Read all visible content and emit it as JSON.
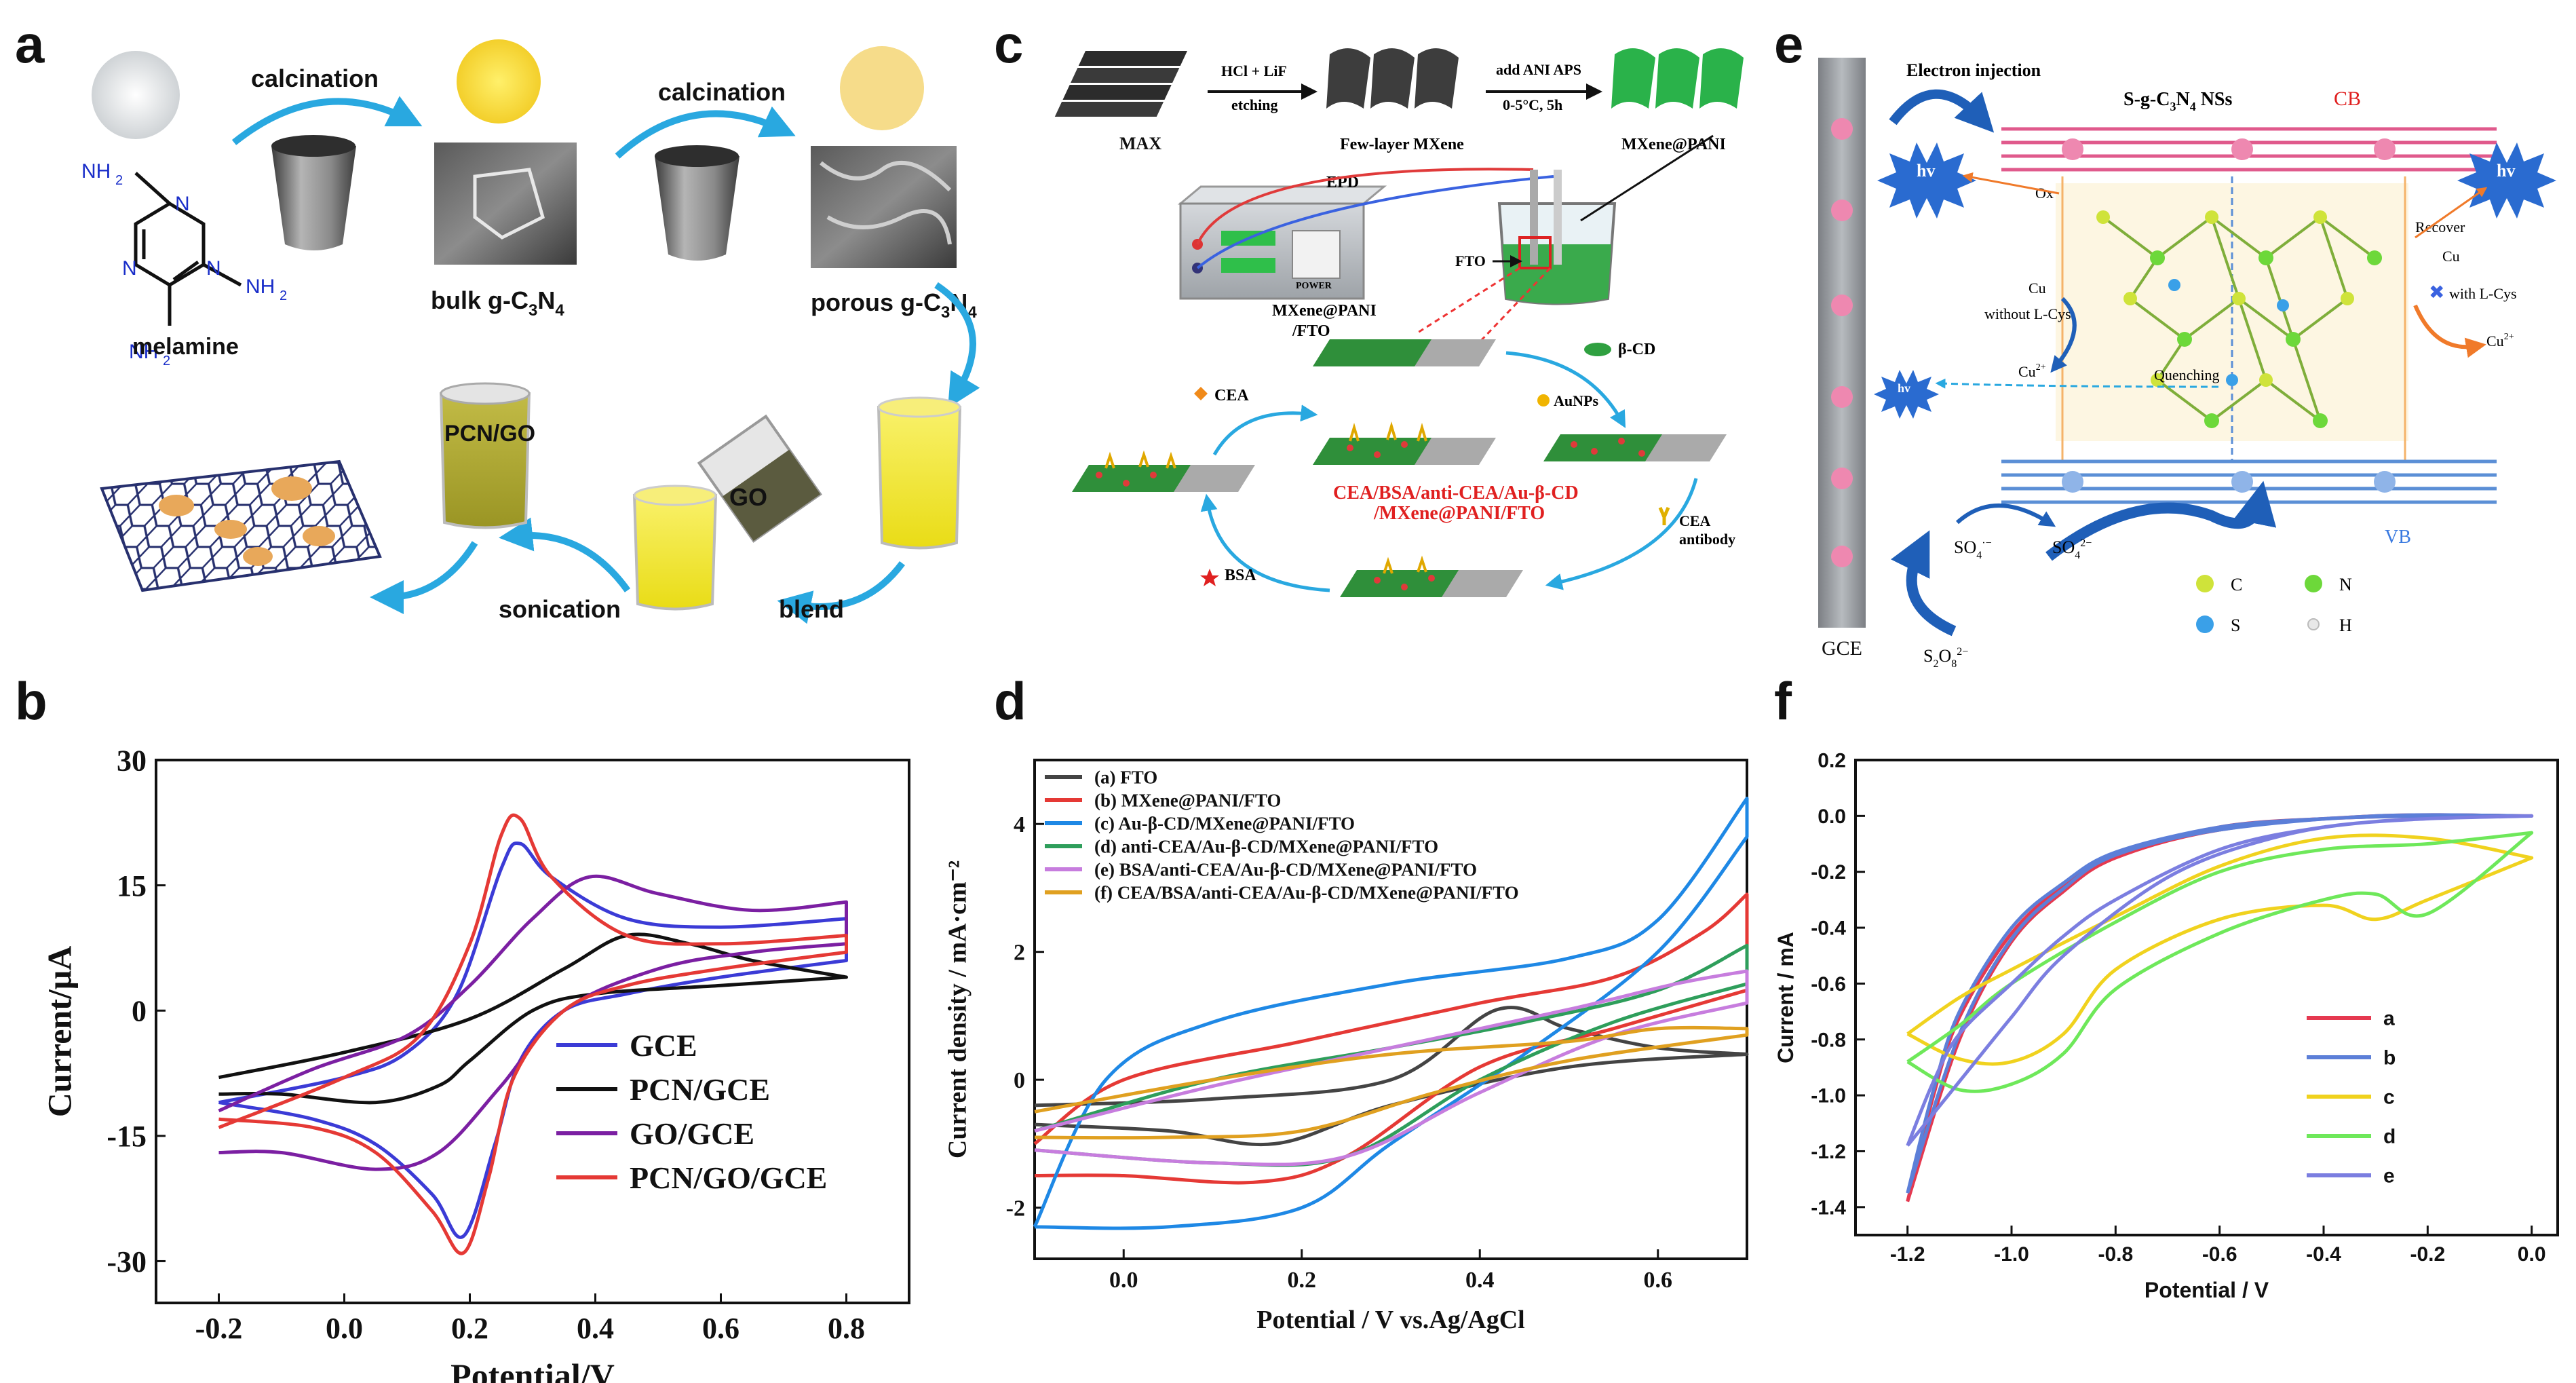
{
  "panel_labels": {
    "a": "a",
    "b": "b",
    "c": "c",
    "d": "d",
    "e": "e",
    "f": "f"
  },
  "panel_a": {
    "melamine": "melamine",
    "nh2": "NH",
    "nh2_sub": "2",
    "n": "N",
    "calcination1": "calcination",
    "calcination2": "calcination",
    "bulk": "bulk g-C",
    "bulk_sub1": "3",
    "bulk_n": "N",
    "bulk_sub2": "4",
    "porous": "porous g-C",
    "porous_sub1": "3",
    "porous_n": "N",
    "porous_sub2": "4",
    "pcn_go": "PCN/GO",
    "go": "GO",
    "sonication": "sonication",
    "blend": "blend"
  },
  "panel_c": {
    "max": "MAX",
    "etch1": "HCl + LiF",
    "etch2": "etching",
    "few": "Few-layer MXene",
    "ani1": "add ANI APS",
    "ani2": "0-5°C, 5h",
    "mxpani": "MXene@PANI",
    "epd": "EPD",
    "power": "POWER",
    "fto": "FTO",
    "mxfto1": "MXene@PANI",
    "mxfto2": "/FTO",
    "bcd": "β-CD",
    "aunps": "AuNPs",
    "cea": "CEA",
    "cea_ab1": "CEA",
    "cea_ab2": "antibody",
    "bsa": "BSA",
    "red1": "CEA/BSA/anti-CEA/Au-β-CD",
    "red2": "/MXene@PANI/FTO"
  },
  "panel_e": {
    "inj": "Electron injection",
    "sg": "S-g-C",
    "sg_sub1": "3",
    "sg_n": "N",
    "sg_sub2": "4",
    "sg_tail": " NSs",
    "cb": "CB",
    "vb": "VB",
    "ec": "e",
    "hv": "hv",
    "ox": "Ox",
    "cu": "Cu",
    "without": "without L-Cys",
    "cu2": "Cu",
    "cu2_sup": "2+",
    "recover": "Recover",
    "withcys": "with L-Cys",
    "quench": "Quenching",
    "hplus": "h",
    "gce": "GCE",
    "so4r": "SO",
    "so4r_sub": "4",
    "so4r_sup": "·−",
    "so42": "SO",
    "so42_sub": "4",
    "so42_sup": "2−",
    "s2o8": "S",
    "s2o8_sub1": "2",
    "s2o8_o": "O",
    "s2o8_sub2": "8",
    "s2o8_sup": "2−",
    "leg_c": "C",
    "leg_n": "N",
    "leg_s": "S",
    "leg_h": "H",
    "colors": {
      "cb_line": "#e05a8c",
      "vb_line": "#5b8fd6",
      "c_atom": "#cfe33a",
      "n_atom": "#6dd83a",
      "s_atom": "#3aa0e8",
      "h_atom": "#e8e8e8"
    }
  },
  "chart_data": [
    {
      "panel": "b",
      "type": "line",
      "xlabel": "Potential/V",
      "ylabel": "Current/μA",
      "xlim": [
        -0.3,
        0.9
      ],
      "ylim": [
        -35,
        30
      ],
      "xticks": [
        -0.2,
        0.0,
        0.2,
        0.4,
        0.6,
        0.8
      ],
      "xtick_labels": [
        "-0.2",
        "0.0",
        "0.2",
        "0.4",
        "0.6",
        "0.8"
      ],
      "yticks": [
        -30,
        -15,
        0,
        15,
        30
      ],
      "ytick_labels": [
        "-30",
        "-15",
        "0",
        "15",
        "30"
      ],
      "legend_position": "bottom-right",
      "series": [
        {
          "name": "GCE",
          "color": "#3b3bd6",
          "fwd_x": [
            -0.2,
            0.0,
            0.1,
            0.18,
            0.25,
            0.28,
            0.33,
            0.45,
            0.6,
            0.8
          ],
          "fwd_y": [
            -11,
            -8,
            -5,
            2,
            17,
            20,
            16,
            11,
            10,
            11
          ],
          "rev_x": [
            0.8,
            0.6,
            0.45,
            0.35,
            0.28,
            0.24,
            0.19,
            0.14,
            0.05,
            -0.05,
            -0.2
          ],
          "rev_y": [
            6,
            4,
            2,
            0,
            -6,
            -16,
            -27,
            -22,
            -16,
            -13,
            -11
          ]
        },
        {
          "name": "PCN/GCE",
          "color": "#111111",
          "fwd_x": [
            -0.2,
            0.0,
            0.2,
            0.35,
            0.45,
            0.55,
            0.65,
            0.8
          ],
          "fwd_y": [
            -8,
            -5,
            -1,
            5,
            9,
            8,
            6,
            4
          ],
          "rev_x": [
            0.8,
            0.6,
            0.4,
            0.3,
            0.2,
            0.15,
            0.05,
            -0.1,
            -0.2
          ],
          "rev_y": [
            4,
            3,
            2,
            0,
            -6,
            -9,
            -11,
            -10,
            -10
          ]
        },
        {
          "name": "GO/GCE",
          "color": "#7b1fa2",
          "fwd_x": [
            -0.2,
            -0.05,
            0.1,
            0.2,
            0.3,
            0.39,
            0.5,
            0.65,
            0.8
          ],
          "fwd_y": [
            -12,
            -7,
            -3,
            3,
            11,
            16,
            14,
            12,
            13
          ],
          "rev_x": [
            0.8,
            0.65,
            0.5,
            0.35,
            0.25,
            0.15,
            0.05,
            -0.1,
            -0.2
          ],
          "rev_y": [
            8,
            7,
            5,
            0,
            -9,
            -17,
            -19,
            -17,
            -17
          ]
        },
        {
          "name": "PCN/GO/GCE",
          "color": "#e53935",
          "fwd_x": [
            -0.2,
            0.0,
            0.12,
            0.2,
            0.25,
            0.28,
            0.33,
            0.45,
            0.6,
            0.8
          ],
          "fwd_y": [
            -14,
            -8,
            -3,
            8,
            21,
            23,
            16,
            9,
            8,
            9
          ],
          "rev_x": [
            0.8,
            0.6,
            0.45,
            0.35,
            0.27,
            0.23,
            0.19,
            0.14,
            0.05,
            -0.05,
            -0.2
          ],
          "rev_y": [
            7,
            5,
            3,
            0,
            -8,
            -20,
            -29,
            -24,
            -17,
            -14,
            -13
          ]
        }
      ]
    },
    {
      "panel": "d",
      "type": "line",
      "xlabel": "Potential / V vs.Ag/AgCl",
      "ylabel": "Current density / mA·cm⁻²",
      "xlim": [
        -0.1,
        0.7
      ],
      "ylim": [
        -2.8,
        5.0
      ],
      "xticks": [
        0.0,
        0.2,
        0.4,
        0.6
      ],
      "xtick_labels": [
        "0.0",
        "0.2",
        "0.4",
        "0.6"
      ],
      "yticks": [
        -2,
        0,
        2,
        4
      ],
      "ytick_labels": [
        "-2",
        "0",
        "2",
        "4"
      ],
      "legend_position": "top-left",
      "series": [
        {
          "name": "(a) FTO",
          "color": "#444444",
          "fwd_x": [
            -0.1,
            0.1,
            0.3,
            0.42,
            0.5,
            0.6,
            0.7
          ],
          "fwd_y": [
            -0.4,
            -0.3,
            0.0,
            1.1,
            0.8,
            0.5,
            0.4
          ],
          "rev_x": [
            0.7,
            0.5,
            0.3,
            0.17,
            0.05,
            -0.1
          ],
          "rev_y": [
            0.4,
            0.2,
            -0.4,
            -1.0,
            -0.8,
            -0.7
          ]
        },
        {
          "name": "(b) MXene@PANI/FTO",
          "color": "#e53935",
          "fwd_x": [
            -0.1,
            0.0,
            0.2,
            0.4,
            0.55,
            0.65,
            0.7
          ],
          "fwd_y": [
            -1.0,
            0.0,
            0.6,
            1.2,
            1.6,
            2.3,
            2.9
          ],
          "rev_x": [
            0.7,
            0.55,
            0.4,
            0.25,
            0.15,
            0.0,
            -0.1
          ],
          "rev_y": [
            1.4,
            0.8,
            0.2,
            -1.2,
            -1.6,
            -1.5,
            -1.5
          ]
        },
        {
          "name": "(c) Au-β-CD/MXene@PANI/FTO",
          "color": "#1e88e5",
          "fwd_x": [
            -0.1,
            -0.02,
            0.1,
            0.3,
            0.5,
            0.6,
            0.7
          ],
          "fwd_y": [
            -2.3,
            0.0,
            0.9,
            1.5,
            1.9,
            2.5,
            4.4
          ],
          "rev_x": [
            0.7,
            0.6,
            0.45,
            0.3,
            0.2,
            0.05,
            -0.1
          ],
          "rev_y": [
            3.8,
            2.0,
            0.4,
            -1.0,
            -2.0,
            -2.3,
            -2.3
          ]
        },
        {
          "name": "(d) anti-CEA/Au-β-CD/MXene@PANI/FTO",
          "color": "#2e9e5b",
          "fwd_x": [
            -0.1,
            0.1,
            0.3,
            0.45,
            0.6,
            0.7
          ],
          "fwd_y": [
            -0.8,
            0.0,
            0.5,
            0.9,
            1.4,
            2.1
          ],
          "rev_x": [
            0.7,
            0.55,
            0.4,
            0.25,
            0.1,
            -0.1
          ],
          "rev_y": [
            1.5,
            0.9,
            0.0,
            -1.2,
            -1.3,
            -1.1
          ]
        },
        {
          "name": "(e) BSA/anti-CEA/Au-β-CD/MXene@PANI/FTO",
          "color": "#c77dde",
          "fwd_x": [
            -0.1,
            0.1,
            0.3,
            0.5,
            0.62,
            0.7
          ],
          "fwd_y": [
            -0.8,
            -0.1,
            0.5,
            1.1,
            1.5,
            1.7
          ],
          "rev_x": [
            0.7,
            0.55,
            0.4,
            0.25,
            0.1,
            -0.1
          ],
          "rev_y": [
            1.2,
            0.7,
            -0.2,
            -1.2,
            -1.3,
            -1.1
          ]
        },
        {
          "name": "(f) CEA/BSA/anti-CEA/Au-β-CD/MXene@PANI/FTO",
          "color": "#e0a020",
          "fwd_x": [
            -0.1,
            0.1,
            0.3,
            0.5,
            0.6,
            0.7
          ],
          "fwd_y": [
            -0.5,
            0.0,
            0.4,
            0.6,
            0.8,
            0.8
          ],
          "rev_x": [
            0.7,
            0.5,
            0.35,
            0.2,
            0.05,
            -0.1
          ],
          "rev_y": [
            0.7,
            0.3,
            -0.2,
            -0.8,
            -0.9,
            -0.9
          ]
        }
      ]
    },
    {
      "panel": "f",
      "type": "line",
      "xlabel": "Potential / V",
      "ylabel": "Current / mA",
      "xlim": [
        -1.3,
        0.05
      ],
      "ylim": [
        -1.5,
        0.2
      ],
      "xticks": [
        -1.2,
        -1.0,
        -0.8,
        -0.6,
        -0.4,
        -0.2,
        0.0
      ],
      "xtick_labels": [
        "-1.2",
        "-1.0",
        "-0.8",
        "-0.6",
        "-0.4",
        "-0.2",
        "0.0"
      ],
      "yticks": [
        -1.4,
        -1.2,
        -1.0,
        -0.8,
        -0.6,
        -0.4,
        -0.2,
        0.0,
        0.2
      ],
      "ytick_labels": [
        "-1.4",
        "-1.2",
        "-1.0",
        "-0.8",
        "-0.6",
        "-0.4",
        "-0.2",
        "0.0",
        "0.2"
      ],
      "legend_position": "right",
      "series": [
        {
          "name": "a",
          "color": "#e53950",
          "fwd_x": [
            -1.2,
            -1.15,
            -1.1,
            -1.0,
            -0.9,
            -0.8,
            -0.6,
            -0.4,
            -0.2,
            0.0
          ],
          "fwd_y": [
            -1.38,
            -1.0,
            -0.72,
            -0.42,
            -0.25,
            -0.14,
            -0.04,
            -0.01,
            0.0,
            0.0
          ],
          "rev_x": [
            0.0,
            -0.3,
            -0.6,
            -0.8,
            -0.9,
            -1.0,
            -1.1,
            -1.2
          ],
          "rev_y": [
            0.0,
            0.0,
            -0.05,
            -0.15,
            -0.27,
            -0.45,
            -0.8,
            -1.38
          ]
        },
        {
          "name": "b",
          "color": "#5c7fd8",
          "fwd_x": [
            -1.2,
            -1.15,
            -1.1,
            -1.0,
            -0.9,
            -0.8,
            -0.6,
            -0.4,
            -0.2,
            0.0
          ],
          "fwd_y": [
            -1.35,
            -0.98,
            -0.7,
            -0.4,
            -0.24,
            -0.13,
            -0.04,
            -0.01,
            0.0,
            0.0
          ],
          "rev_x": [
            0.0,
            -0.3,
            -0.6,
            -0.8,
            -0.9,
            -1.0,
            -1.1,
            -1.2
          ],
          "rev_y": [
            0.0,
            0.0,
            -0.05,
            -0.14,
            -0.26,
            -0.44,
            -0.78,
            -1.35
          ]
        },
        {
          "name": "c",
          "color": "#f0d21e",
          "fwd_x": [
            -1.2,
            -1.1,
            -1.0,
            -0.9,
            -0.8,
            -0.6,
            -0.4,
            -0.3,
            -0.2,
            0.0
          ],
          "fwd_y": [
            -0.78,
            -0.87,
            -0.88,
            -0.78,
            -0.55,
            -0.37,
            -0.32,
            -0.37,
            -0.3,
            -0.15
          ],
          "rev_x": [
            0.0,
            -0.2,
            -0.4,
            -0.6,
            -0.8,
            -1.0,
            -1.1,
            -1.2
          ],
          "rev_y": [
            -0.15,
            -0.08,
            -0.08,
            -0.18,
            -0.36,
            -0.55,
            -0.65,
            -0.78
          ]
        },
        {
          "name": "d",
          "color": "#6ee85a",
          "fwd_x": [
            -1.2,
            -1.1,
            -1.0,
            -0.9,
            -0.8,
            -0.6,
            -0.4,
            -0.3,
            -0.2,
            0.0
          ],
          "fwd_y": [
            -0.88,
            -0.98,
            -0.96,
            -0.85,
            -0.62,
            -0.42,
            -0.3,
            -0.28,
            -0.35,
            -0.06
          ],
          "rev_x": [
            0.0,
            -0.2,
            -0.4,
            -0.6,
            -0.8,
            -1.0,
            -1.1,
            -1.2
          ],
          "rev_y": [
            -0.06,
            -0.1,
            -0.12,
            -0.2,
            -0.38,
            -0.6,
            -0.75,
            -0.88
          ]
        },
        {
          "name": "e",
          "color": "#7b7ee0",
          "fwd_x": [
            -1.2,
            -1.15,
            -1.1,
            -1.0,
            -0.9,
            -0.8,
            -0.6,
            -0.4,
            -0.2,
            0.0
          ],
          "fwd_y": [
            -1.18,
            -0.95,
            -0.78,
            -0.6,
            -0.43,
            -0.3,
            -0.12,
            -0.04,
            -0.01,
            0.0
          ],
          "rev_x": [
            0.0,
            -0.3,
            -0.5,
            -0.7,
            -0.9,
            -1.0,
            -1.1,
            -1.2
          ],
          "rev_y": [
            0.0,
            -0.02,
            -0.08,
            -0.22,
            -0.5,
            -0.72,
            -0.95,
            -1.18
          ]
        }
      ]
    }
  ]
}
